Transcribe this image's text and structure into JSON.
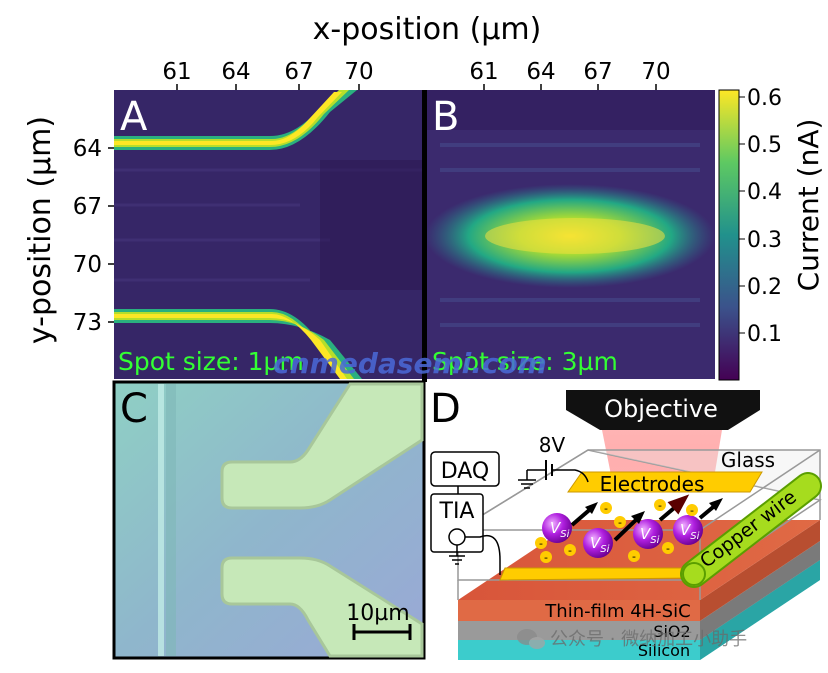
{
  "figure": {
    "x_axis_title": "x-position (µm)",
    "y_axis_title": "y-position (µm)",
    "x_ticks_a": [
      "61",
      "64",
      "67",
      "70"
    ],
    "x_ticks_b": [
      "61",
      "64",
      "67",
      "70"
    ],
    "y_ticks": [
      "64",
      "67",
      "70",
      "73"
    ],
    "colorbar": {
      "title": "Current (nA)",
      "ticks": [
        "0.6",
        "0.5",
        "0.4",
        "0.3",
        "0.2",
        "0.1"
      ],
      "colors": [
        "#440154",
        "#3b528b",
        "#21918c",
        "#5ec962",
        "#fde725"
      ]
    },
    "panels": {
      "a": {
        "letter": "A",
        "spot_text": "Spot size: 1µm"
      },
      "b": {
        "letter": "B",
        "spot_text": "Spot size: 3µm"
      },
      "c": {
        "letter": "C",
        "scale_text": "10µm"
      },
      "d": {
        "letter": "D",
        "objective": "Objective",
        "glass": "Glass",
        "electrodes": "Electrodes",
        "copper_wire": "Copper wire",
        "thin_film": "Thin-film 4H-SiC",
        "sio2": "SiO2",
        "silicon": "Silicon",
        "daq": "DAQ",
        "tia": "TIA",
        "voltage": "8V",
        "vacancy_main": "V",
        "vacancy_sub": "Si",
        "electron_sign": "-"
      }
    },
    "watermark": "cnmedasemi.com",
    "wechat_text": "公众号 · 微纳加工小助手"
  }
}
